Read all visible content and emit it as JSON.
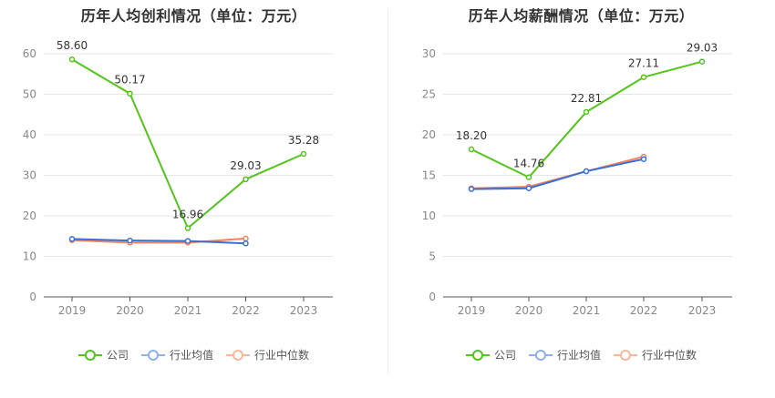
{
  "colors": {
    "company": "#52c41a",
    "industry_avg": "#3a6fd8",
    "industry_median": "#f0845c",
    "legend_avg": "#8fb0e8",
    "legend_median": "#f5b89e"
  },
  "legend": {
    "company": "公司",
    "industry_avg": "行业均值",
    "industry_median": "行业中位数"
  },
  "chart_data": [
    {
      "type": "line",
      "title": "历年人均创利情况（单位：万元）",
      "categories": [
        "2019",
        "2020",
        "2021",
        "2022",
        "2023"
      ],
      "ylim": [
        0,
        60
      ],
      "yticks": [
        0,
        10,
        20,
        30,
        40,
        50,
        60
      ],
      "grid": true,
      "legend_position": "bottom",
      "series": [
        {
          "name": "公司",
          "key": "company",
          "values": [
            58.6,
            50.17,
            16.96,
            29.03,
            35.28
          ],
          "labels": [
            "58.60",
            "50.17",
            "16.96",
            "29.03",
            "35.28"
          ]
        },
        {
          "name": "行业均值",
          "key": "industry_avg",
          "values": [
            14.3,
            13.9,
            13.8,
            13.2,
            null
          ]
        },
        {
          "name": "行业中位数",
          "key": "industry_median",
          "values": [
            14.0,
            13.4,
            13.4,
            14.4,
            null
          ]
        }
      ]
    },
    {
      "type": "line",
      "title": "历年人均薪酬情况（单位：万元）",
      "categories": [
        "2019",
        "2020",
        "2021",
        "2022",
        "2023"
      ],
      "ylim": [
        0,
        30
      ],
      "yticks": [
        0,
        5,
        10,
        15,
        20,
        25,
        30
      ],
      "grid": true,
      "legend_position": "bottom",
      "series": [
        {
          "name": "公司",
          "key": "company",
          "values": [
            18.2,
            14.76,
            22.81,
            27.11,
            29.03
          ],
          "labels": [
            "18.20",
            "14.76",
            "22.81",
            "27.11",
            "29.03"
          ]
        },
        {
          "name": "行业均值",
          "key": "industry_avg",
          "values": [
            13.3,
            13.4,
            15.5,
            17.0,
            null
          ]
        },
        {
          "name": "行业中位数",
          "key": "industry_median",
          "values": [
            13.4,
            13.6,
            15.5,
            17.3,
            null
          ]
        }
      ]
    }
  ]
}
